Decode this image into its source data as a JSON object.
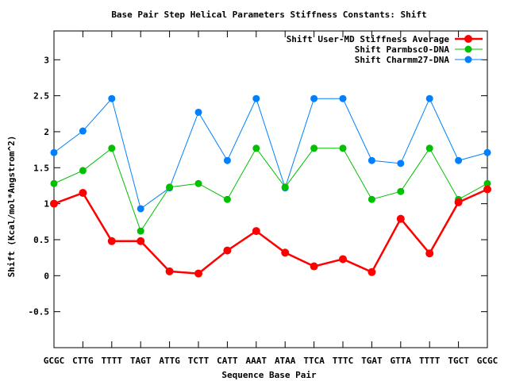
{
  "chart_data": {
    "type": "line",
    "title": "Base Pair Step Helical Parameters Stiffness Constants: Shift",
    "xlabel": "Sequence Base Pair",
    "ylabel": "Shift (Kcal/mol*Angstrom^2)",
    "categories": [
      "GCGC",
      "CTTG",
      "TTTT",
      "TAGT",
      "ATTG",
      "TCTT",
      "CATT",
      "AAAT",
      "ATAA",
      "TTCA",
      "TTTC",
      "TGAT",
      "GTTA",
      "TTTT",
      "TGCT",
      "GCGC"
    ],
    "ylim": [
      -1,
      3.4
    ],
    "yticks": [
      -0.5,
      0,
      0.5,
      1,
      1.5,
      2,
      2.5,
      3
    ],
    "ytick_labels": [
      "-0.5",
      "0",
      "0.5",
      "1",
      "1.5",
      "2",
      "2.5",
      "3"
    ],
    "grid": false,
    "legend_position": "top-right",
    "series": [
      {
        "name": "Shift User-MD Stiffness Average",
        "color": "#ff0000",
        "values": [
          1.0,
          1.15,
          0.48,
          0.48,
          0.06,
          0.03,
          0.35,
          0.62,
          0.32,
          0.13,
          0.23,
          0.05,
          0.79,
          0.31,
          1.02,
          1.2
        ]
      },
      {
        "name": "Shift Parmbsc0-DNA",
        "color": "#00c000",
        "values": [
          1.28,
          1.46,
          1.77,
          0.62,
          1.23,
          1.28,
          1.06,
          1.77,
          1.23,
          1.77,
          1.77,
          1.06,
          1.17,
          1.77,
          1.06,
          1.28
        ]
      },
      {
        "name": "Shift Charmm27-DNA",
        "color": "#0080ff",
        "values": [
          1.71,
          2.01,
          2.46,
          0.93,
          1.22,
          2.27,
          1.6,
          2.46,
          1.22,
          2.46,
          2.46,
          1.6,
          1.56,
          2.46,
          1.6,
          1.71
        ]
      }
    ]
  }
}
